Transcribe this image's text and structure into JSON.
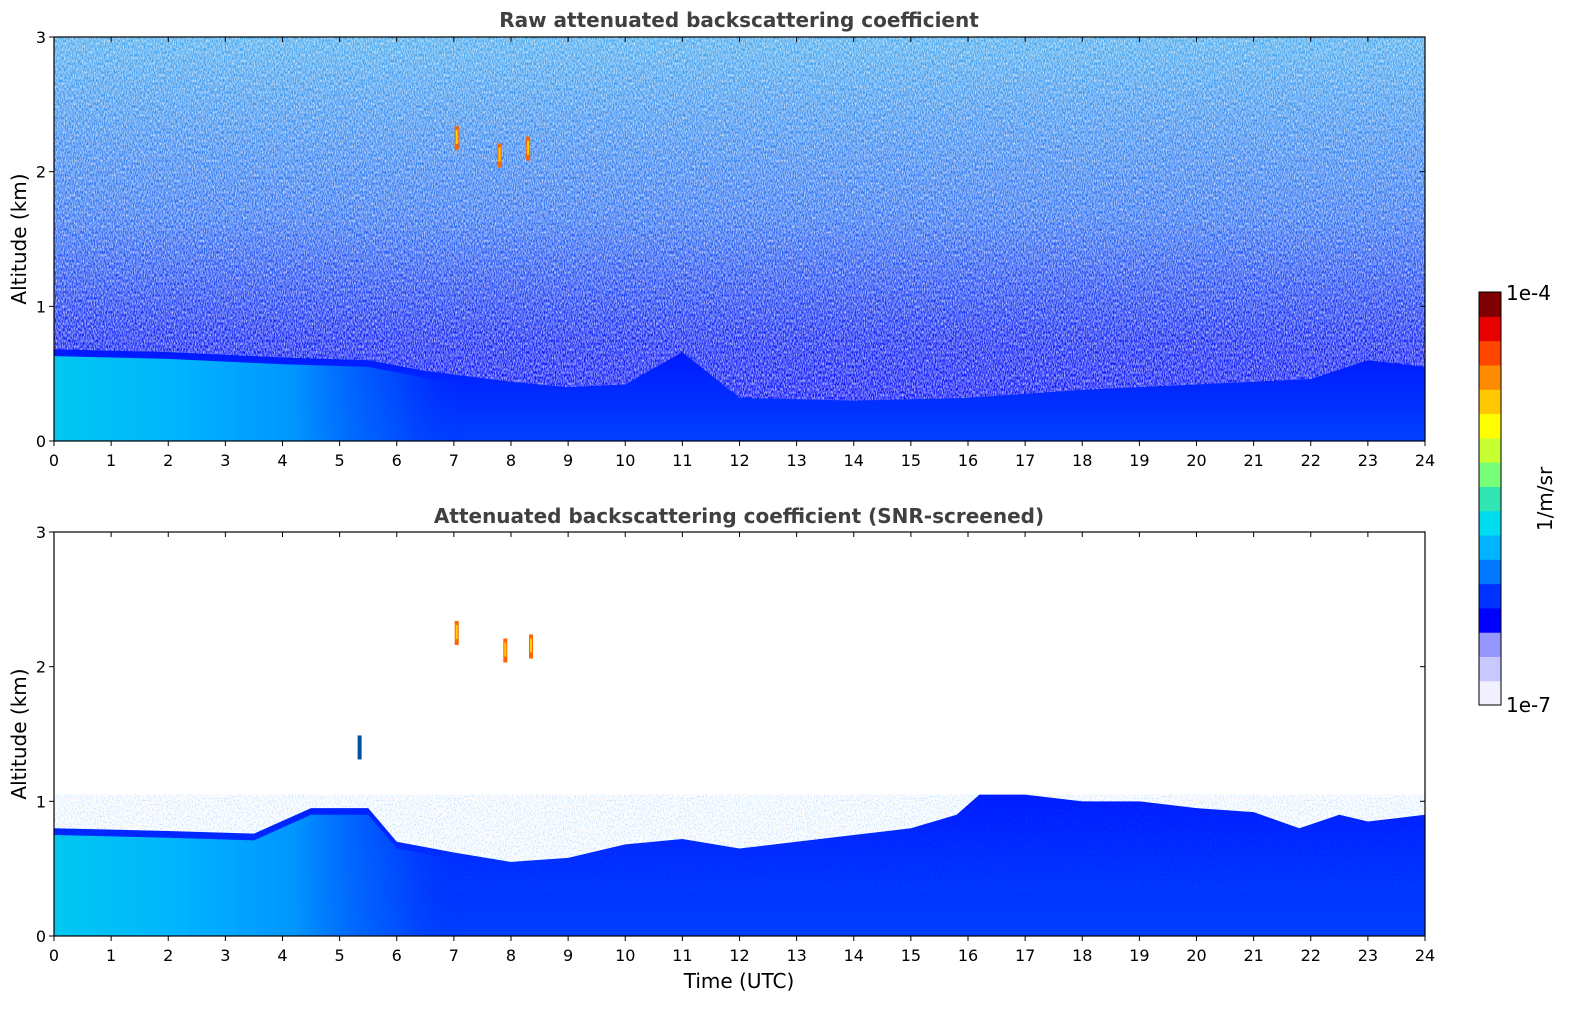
{
  "chart_data": [
    {
      "type": "heatmap",
      "title": "Raw attenuated backscattering coefficient",
      "xlabel": "",
      "ylabel": "Altitude (km)",
      "xlim": [
        0,
        24
      ],
      "ylim": [
        0,
        3
      ],
      "xticks": [
        "0",
        "1",
        "2",
        "3",
        "4",
        "5",
        "6",
        "7",
        "8",
        "9",
        "10",
        "11",
        "12",
        "13",
        "14",
        "15",
        "16",
        "17",
        "18",
        "19",
        "20",
        "21",
        "22",
        "23",
        "24"
      ],
      "yticks": [
        "0",
        "1",
        "2",
        "3"
      ],
      "boundary_layer_top_km": [
        [
          0,
          0.68
        ],
        [
          2,
          0.66
        ],
        [
          4,
          0.62
        ],
        [
          5.5,
          0.6
        ],
        [
          6.5,
          0.52
        ],
        [
          8,
          0.44
        ],
        [
          9,
          0.4
        ],
        [
          10,
          0.42
        ],
        [
          11,
          0.66
        ],
        [
          12,
          0.32
        ],
        [
          14,
          0.3
        ],
        [
          16,
          0.32
        ],
        [
          18,
          0.38
        ],
        [
          20,
          0.42
        ],
        [
          22,
          0.46
        ],
        [
          23,
          0.6
        ],
        [
          24,
          0.55
        ]
      ],
      "features": [
        {
          "x": 7.05,
          "y": 2.25,
          "label": "cloud"
        },
        {
          "x": 7.8,
          "y": 2.12,
          "label": "cloud"
        },
        {
          "x": 8.3,
          "y": 2.17,
          "label": "cloud"
        }
      ]
    },
    {
      "type": "heatmap",
      "title": "Attenuated backscattering coefficient (SNR-screened)",
      "xlabel": "Time (UTC)",
      "ylabel": "Altitude (km)",
      "xlim": [
        0,
        24
      ],
      "ylim": [
        0,
        3
      ],
      "xticks": [
        "0",
        "1",
        "2",
        "3",
        "4",
        "5",
        "6",
        "7",
        "8",
        "9",
        "10",
        "11",
        "12",
        "13",
        "14",
        "15",
        "16",
        "17",
        "18",
        "19",
        "20",
        "21",
        "22",
        "23",
        "24"
      ],
      "yticks": [
        "0",
        "1",
        "2",
        "3"
      ],
      "boundary_layer_top_km": [
        [
          0,
          0.8
        ],
        [
          2,
          0.78
        ],
        [
          3.5,
          0.76
        ],
        [
          4.5,
          0.95
        ],
        [
          5.5,
          0.95
        ],
        [
          6,
          0.7
        ],
        [
          7,
          0.62
        ],
        [
          8,
          0.55
        ],
        [
          9,
          0.58
        ],
        [
          10,
          0.68
        ],
        [
          11,
          0.72
        ],
        [
          12,
          0.65
        ],
        [
          13,
          0.7
        ],
        [
          14,
          0.75
        ],
        [
          15,
          0.8
        ],
        [
          15.8,
          0.9
        ],
        [
          16.2,
          1.05
        ],
        [
          17,
          1.05
        ],
        [
          18,
          1.0
        ],
        [
          19,
          1.0
        ],
        [
          20,
          0.95
        ],
        [
          21,
          0.92
        ],
        [
          21.8,
          0.8
        ],
        [
          22.5,
          0.9
        ],
        [
          23,
          0.85
        ],
        [
          24,
          0.9
        ]
      ],
      "features": [
        {
          "x": 5.35,
          "y": 1.4,
          "label": "plume"
        },
        {
          "x": 7.05,
          "y": 2.25,
          "label": "cloud"
        },
        {
          "x": 7.9,
          "y": 2.12,
          "label": "cloud"
        },
        {
          "x": 8.35,
          "y": 2.15,
          "label": "cloud"
        }
      ]
    }
  ],
  "colorbar": {
    "label": "1/m/sr",
    "min_label": "1e-7",
    "max_label": "1e-4",
    "colors": [
      "#f0f0ff",
      "#c8c8ff",
      "#9696ff",
      "#0000ff",
      "#0032ff",
      "#0078ff",
      "#00b4ff",
      "#00dcf0",
      "#32e6b4",
      "#78ff78",
      "#c8ff32",
      "#ffff00",
      "#ffc800",
      "#ff8c00",
      "#ff4600",
      "#e60000",
      "#7f0000"
    ]
  }
}
